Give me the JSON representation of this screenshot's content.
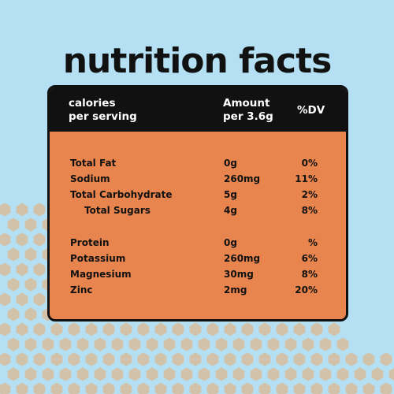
{
  "title": "nutrition facts",
  "colors": {
    "background": "#b5e0f4",
    "panel": "#e8854e",
    "header": "#111111",
    "hexagons": "#d3c2aa"
  },
  "header": {
    "col1": "calories\nper serving",
    "col2": "Amount\nper 3.6g",
    "col3": "%DV"
  },
  "rows": [
    {
      "name": "Total Fat",
      "amount": "0g",
      "dv": "0%"
    },
    {
      "name": "Sodium",
      "amount": "260mg",
      "dv": "11%"
    },
    {
      "name": "Total Carbohydrate",
      "amount": "5g",
      "dv": "2%"
    },
    {
      "name": "Total Sugars",
      "amount": "4g",
      "dv": "8%"
    },
    {
      "name": "Protein",
      "amount": "0g",
      "dv": "%"
    },
    {
      "name": "Potassium",
      "amount": "260mg",
      "dv": "6%"
    },
    {
      "name": "Magnesium",
      "amount": "30mg",
      "dv": "8%"
    },
    {
      "name": "Zinc",
      "amount": "2mg",
      "dv": "20%"
    }
  ]
}
